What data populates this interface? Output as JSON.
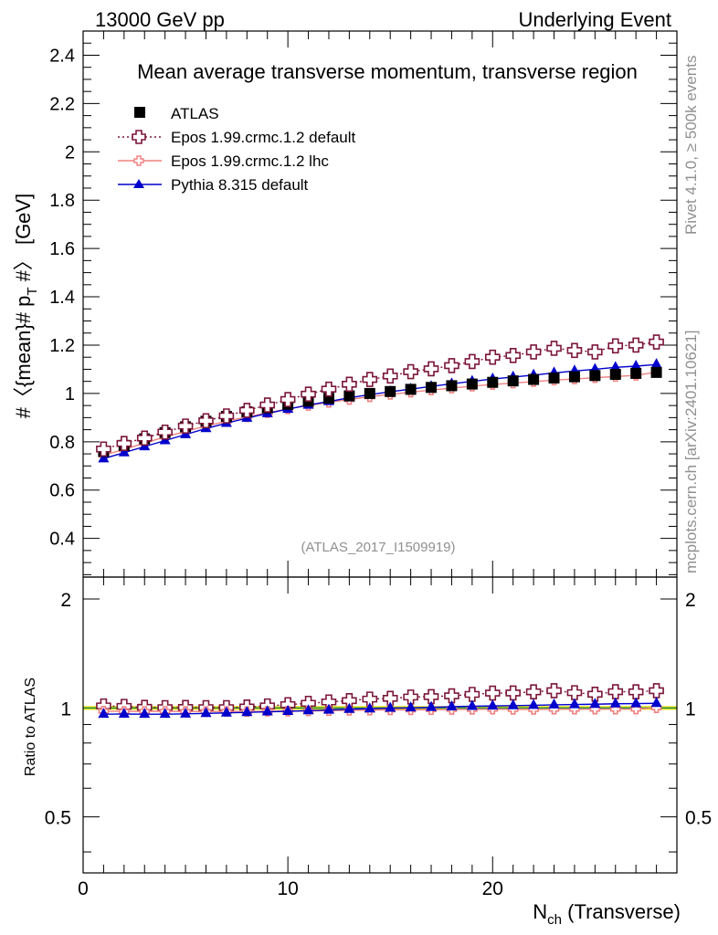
{
  "header": {
    "energy_label": "13000 GeV pp",
    "process_label": "Underlying Event"
  },
  "side_labels": {
    "rivet_label": "Rivet 4.1.0, ≥ 500k events",
    "mcplots_label": "mcplots.cern.ch [arXiv:2401.10621]"
  },
  "colors": {
    "atlas": "#000000",
    "epos_default": "#7b1637",
    "epos_lhc": "#f08080",
    "pythia": "#0000cc",
    "ratio_band": "#e6e600",
    "ratio_line": "#2e8b57",
    "watermark": "#909090"
  },
  "chart_data": [
    {
      "type": "scatter",
      "title": "Mean average transverse momentum, transverse region",
      "analysis_tag": "(ATLAS_2017_I1509919)",
      "xlabel": "N",
      "xlabel_sub": "ch",
      "xlabel_suffix": " (Transverse)",
      "ylabel": "#〈{mean}# p",
      "ylabel_sub": "T",
      "ylabel_suffix": " #〉 [GeV]",
      "xlim": [
        0,
        29
      ],
      "ylim": [
        0.24,
        2.5
      ],
      "yticks": [
        0.4,
        0.6,
        0.8,
        1,
        1.2,
        1.4,
        1.6,
        1.8,
        2,
        2.2,
        2.4
      ],
      "ytick_labels": [
        "0.4",
        "0.6",
        "0.8",
        "1",
        "1.2",
        "1.4",
        "1.6",
        "1.8",
        "2",
        "2.2",
        "2.4"
      ],
      "x": [
        1,
        2,
        3,
        4,
        5,
        6,
        7,
        8,
        9,
        10,
        11,
        12,
        13,
        14,
        15,
        16,
        17,
        18,
        19,
        20,
        21,
        22,
        23,
        24,
        25,
        26,
        27,
        28
      ],
      "series": [
        {
          "name": "ATLAS",
          "key": "atlas",
          "values": [
            0.76,
            0.785,
            0.812,
            0.838,
            0.862,
            0.885,
            0.905,
            0.924,
            0.94,
            0.955,
            0.968,
            0.98,
            0.99,
            1.0,
            1.008,
            1.017,
            1.025,
            1.032,
            1.039,
            1.046,
            1.052,
            1.058,
            1.064,
            1.069,
            1.074,
            1.079,
            1.083,
            1.087
          ]
        },
        {
          "name": "Epos 1.99.crmc.1.2 default",
          "key": "epos_default",
          "values": [
            0.77,
            0.793,
            0.815,
            0.84,
            0.865,
            0.887,
            0.907,
            0.93,
            0.952,
            0.975,
            0.997,
            1.018,
            1.038,
            1.058,
            1.072,
            1.09,
            1.102,
            1.115,
            1.132,
            1.15,
            1.157,
            1.172,
            1.187,
            1.178,
            1.172,
            1.197,
            1.2,
            1.213
          ]
        },
        {
          "name": "Epos 1.99.crmc.1.2 lhc",
          "key": "epos_lhc",
          "values": [
            0.745,
            0.768,
            0.795,
            0.82,
            0.843,
            0.865,
            0.885,
            0.903,
            0.92,
            0.936,
            0.95,
            0.963,
            0.975,
            0.986,
            0.996,
            1.005,
            1.014,
            1.022,
            1.03,
            1.037,
            1.043,
            1.049,
            1.055,
            1.06,
            1.065,
            1.07,
            1.075,
            1.088
          ]
        },
        {
          "name": "Pythia 8.315 default",
          "key": "pythia",
          "values": [
            0.73,
            0.755,
            0.78,
            0.805,
            0.83,
            0.855,
            0.877,
            0.898,
            0.917,
            0.935,
            0.952,
            0.967,
            0.982,
            0.995,
            1.007,
            1.018,
            1.029,
            1.04,
            1.05,
            1.06,
            1.068,
            1.076,
            1.085,
            1.093,
            1.1,
            1.108,
            1.113,
            1.12
          ]
        }
      ]
    },
    {
      "type": "scatter",
      "title": "",
      "ylabel": "Ratio to ATLAS",
      "ylim": [
        0.35,
        2.3
      ],
      "yticks": [
        0.5,
        1,
        2
      ],
      "ytick_labels": [
        "0.5",
        "1",
        "2"
      ],
      "xticks": [
        0,
        10,
        20
      ],
      "xtick_labels": [
        "0",
        "10",
        "20"
      ],
      "x": [
        1,
        2,
        3,
        4,
        5,
        6,
        7,
        8,
        9,
        10,
        11,
        12,
        13,
        14,
        15,
        16,
        17,
        18,
        19,
        20,
        21,
        22,
        23,
        24,
        25,
        26,
        27,
        28
      ],
      "series": [
        {
          "name": "Epos 1.99.crmc.1.2 default",
          "key": "epos_default",
          "values": [
            1.013,
            1.01,
            1.004,
            1.002,
            1.003,
            1.002,
            1.002,
            1.006,
            1.013,
            1.021,
            1.03,
            1.039,
            1.048,
            1.058,
            1.063,
            1.072,
            1.075,
            1.08,
            1.09,
            1.099,
            1.1,
            1.108,
            1.116,
            1.102,
            1.091,
            1.109,
            1.108,
            1.116
          ]
        },
        {
          "name": "Epos 1.99.crmc.1.2 lhc",
          "key": "epos_lhc",
          "values": [
            0.98,
            0.978,
            0.979,
            0.979,
            0.978,
            0.977,
            0.978,
            0.977,
            0.979,
            0.98,
            0.981,
            0.983,
            0.985,
            0.986,
            0.988,
            0.988,
            0.989,
            0.99,
            0.991,
            0.992,
            0.991,
            0.991,
            0.992,
            0.992,
            0.992,
            0.992,
            0.993,
            1.001
          ]
        },
        {
          "name": "Pythia 8.315 default",
          "key": "pythia",
          "values": [
            0.961,
            0.962,
            0.961,
            0.961,
            0.963,
            0.966,
            0.969,
            0.972,
            0.976,
            0.979,
            0.983,
            0.987,
            0.992,
            0.995,
            0.999,
            1.001,
            1.004,
            1.008,
            1.011,
            1.013,
            1.015,
            1.017,
            1.02,
            1.022,
            1.024,
            1.027,
            1.028,
            1.03
          ]
        }
      ]
    }
  ]
}
